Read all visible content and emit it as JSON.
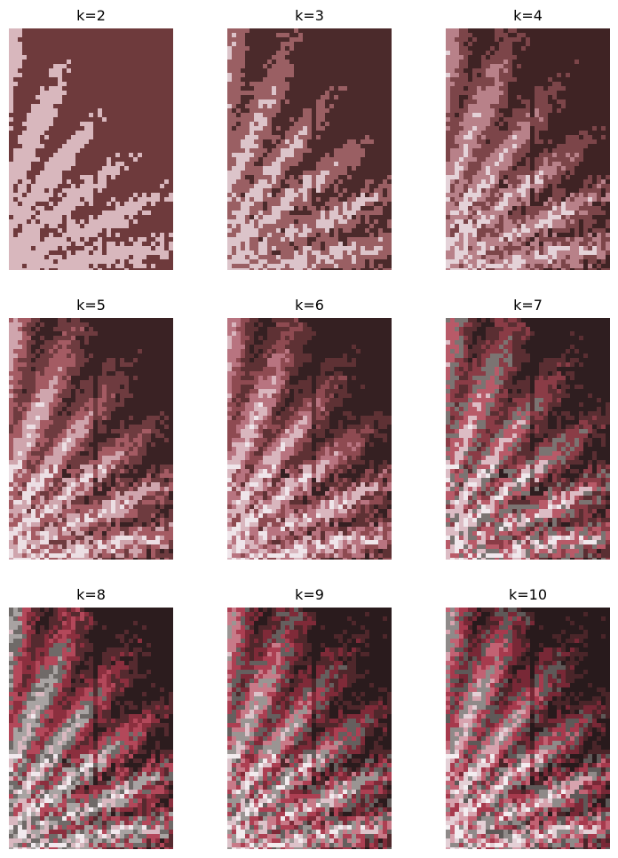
{
  "figure": {
    "panels": [
      {
        "title": "k=2",
        "colors": [
          "#6e3a3c",
          "#d8b7bd"
        ]
      },
      {
        "title": "k=3",
        "colors": [
          "#4b2a2b",
          "#9a5f63",
          "#dcc4ca"
        ]
      },
      {
        "title": "k=4",
        "colors": [
          "#3f2324",
          "#7c4549",
          "#b88189",
          "#e4d2d8"
        ]
      },
      {
        "title": "k=5",
        "colors": [
          "#3a2224",
          "#6e3b3f",
          "#a45b63",
          "#cfa5ad",
          "#ecdfe4"
        ]
      },
      {
        "title": "k=6",
        "colors": [
          "#352022",
          "#5e3134",
          "#8e4a51",
          "#b87480",
          "#d9b6be",
          "#efe5ea"
        ]
      },
      {
        "title": "k=7",
        "colors": [
          "#2f1e20",
          "#5a2e32",
          "#8a3c46",
          "#7b7472",
          "#b85a68",
          "#dcbcc4",
          "#f0e8ec"
        ]
      },
      {
        "title": "k=8",
        "colors": [
          "#2c1c1e",
          "#552a2f",
          "#8b2f3e",
          "#6f6a68",
          "#b3485a",
          "#a8a3a2",
          "#d9b8c0",
          "#f1e9ed"
        ]
      },
      {
        "title": "k=9",
        "colors": [
          "#2a1b1d",
          "#4f272b",
          "#7f2a38",
          "#655f5e",
          "#ac3f52",
          "#9a9593",
          "#c87a88",
          "#ddc3ca",
          "#f2ebee"
        ]
      },
      {
        "title": "k=10",
        "colors": [
          "#281a1c",
          "#4a2529",
          "#782836",
          "#5e5958",
          "#a63a4d",
          "#8f8a89",
          "#c26273",
          "#d7a3ae",
          "#e4d0d6",
          "#f3edf0"
        ]
      }
    ]
  }
}
